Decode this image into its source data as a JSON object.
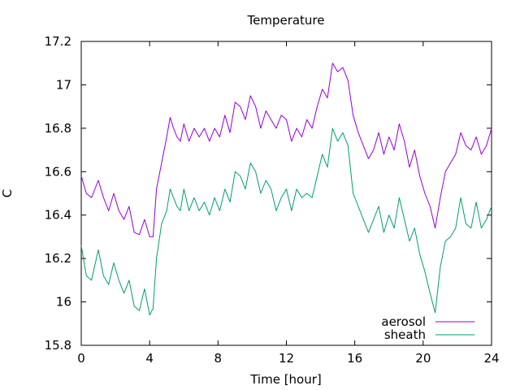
{
  "chart_data": {
    "type": "line",
    "title": "Temperature",
    "xlabel": "Time [hour]",
    "ylabel": "C",
    "xlim": [
      0,
      24
    ],
    "ylim": [
      15.8,
      17.2
    ],
    "xticks": [
      0,
      4,
      8,
      12,
      16,
      20,
      24
    ],
    "xtick_labels": [
      "0",
      "4",
      "8",
      "12",
      "16",
      "20",
      "24"
    ],
    "yticks": [
      15.8,
      16,
      16.2,
      16.4,
      16.6,
      16.8,
      17,
      17.2
    ],
    "ytick_labels": [
      "15.8",
      "16",
      "16.2",
      "16.4",
      "16.6",
      "16.8",
      "17",
      "17.2"
    ],
    "grid": false,
    "legend_position": "bottom-right",
    "series": [
      {
        "name": "aerosol",
        "color": "#9400d3",
        "x": [
          0,
          0.3,
          0.6,
          1.0,
          1.3,
          1.6,
          1.9,
          2.2,
          2.5,
          2.8,
          3.1,
          3.4,
          3.7,
          4.0,
          4.2,
          4.4,
          4.7,
          5.0,
          5.2,
          5.4,
          5.6,
          5.8,
          6.0,
          6.3,
          6.6,
          6.9,
          7.2,
          7.5,
          7.8,
          8.1,
          8.4,
          8.7,
          9.0,
          9.3,
          9.6,
          9.9,
          10.2,
          10.5,
          10.8,
          11.1,
          11.4,
          11.7,
          12.0,
          12.3,
          12.6,
          12.9,
          13.2,
          13.5,
          13.8,
          14.1,
          14.4,
          14.7,
          15.0,
          15.3,
          15.6,
          15.9,
          16.2,
          16.5,
          16.8,
          17.1,
          17.4,
          17.7,
          18.0,
          18.3,
          18.6,
          18.9,
          19.2,
          19.5,
          19.8,
          20.1,
          20.4,
          20.7,
          21.0,
          21.3,
          21.6,
          21.9,
          22.2,
          22.5,
          22.8,
          23.1,
          23.4,
          23.7,
          24.0
        ],
        "values": [
          16.58,
          16.5,
          16.48,
          16.56,
          16.48,
          16.42,
          16.5,
          16.42,
          16.38,
          16.44,
          16.32,
          16.31,
          16.38,
          16.3,
          16.3,
          16.52,
          16.64,
          16.76,
          16.85,
          16.8,
          16.76,
          16.74,
          16.82,
          16.74,
          16.8,
          16.76,
          16.8,
          16.74,
          16.8,
          16.76,
          16.86,
          16.78,
          16.92,
          16.9,
          16.84,
          16.95,
          16.9,
          16.8,
          16.88,
          16.84,
          16.8,
          16.86,
          16.84,
          16.74,
          16.8,
          16.76,
          16.84,
          16.8,
          16.9,
          16.98,
          16.94,
          17.1,
          17.06,
          17.08,
          17.02,
          16.86,
          16.78,
          16.72,
          16.66,
          16.7,
          16.78,
          16.68,
          16.76,
          16.7,
          16.82,
          16.74,
          16.62,
          16.7,
          16.58,
          16.5,
          16.44,
          16.34,
          16.48,
          16.6,
          16.64,
          16.68,
          16.78,
          16.72,
          16.7,
          16.76,
          16.68,
          16.72,
          16.8
        ]
      },
      {
        "name": "sheath",
        "color": "#009e73",
        "x": [
          0,
          0.3,
          0.6,
          1.0,
          1.3,
          1.6,
          1.9,
          2.2,
          2.5,
          2.8,
          3.1,
          3.4,
          3.7,
          4.0,
          4.2,
          4.4,
          4.7,
          5.0,
          5.2,
          5.4,
          5.6,
          5.8,
          6.0,
          6.3,
          6.6,
          6.9,
          7.2,
          7.5,
          7.8,
          8.1,
          8.4,
          8.7,
          9.0,
          9.3,
          9.6,
          9.9,
          10.2,
          10.5,
          10.8,
          11.1,
          11.4,
          11.7,
          12.0,
          12.3,
          12.6,
          12.9,
          13.2,
          13.5,
          13.8,
          14.1,
          14.4,
          14.7,
          15.0,
          15.3,
          15.6,
          15.9,
          16.2,
          16.5,
          16.8,
          17.1,
          17.4,
          17.7,
          18.0,
          18.3,
          18.6,
          18.9,
          19.2,
          19.5,
          19.8,
          20.1,
          20.4,
          20.7,
          21.0,
          21.3,
          21.6,
          21.9,
          22.2,
          22.5,
          22.8,
          23.1,
          23.4,
          23.7,
          24.0
        ],
        "values": [
          16.26,
          16.12,
          16.1,
          16.24,
          16.12,
          16.08,
          16.18,
          16.1,
          16.04,
          16.1,
          15.98,
          15.96,
          16.06,
          15.94,
          15.97,
          16.2,
          16.36,
          16.42,
          16.52,
          16.48,
          16.44,
          16.42,
          16.52,
          16.42,
          16.48,
          16.42,
          16.46,
          16.4,
          16.48,
          16.42,
          16.52,
          16.46,
          16.6,
          16.58,
          16.52,
          16.64,
          16.6,
          16.5,
          16.56,
          16.52,
          16.42,
          16.48,
          16.52,
          16.42,
          16.52,
          16.48,
          16.5,
          16.48,
          16.58,
          16.68,
          16.62,
          16.8,
          16.74,
          16.78,
          16.72,
          16.5,
          16.44,
          16.38,
          16.32,
          16.38,
          16.44,
          16.32,
          16.4,
          16.34,
          16.48,
          16.38,
          16.28,
          16.34,
          16.22,
          16.14,
          16.04,
          15.95,
          16.16,
          16.28,
          16.3,
          16.34,
          16.48,
          16.36,
          16.34,
          16.46,
          16.34,
          16.38,
          16.44
        ]
      }
    ]
  }
}
